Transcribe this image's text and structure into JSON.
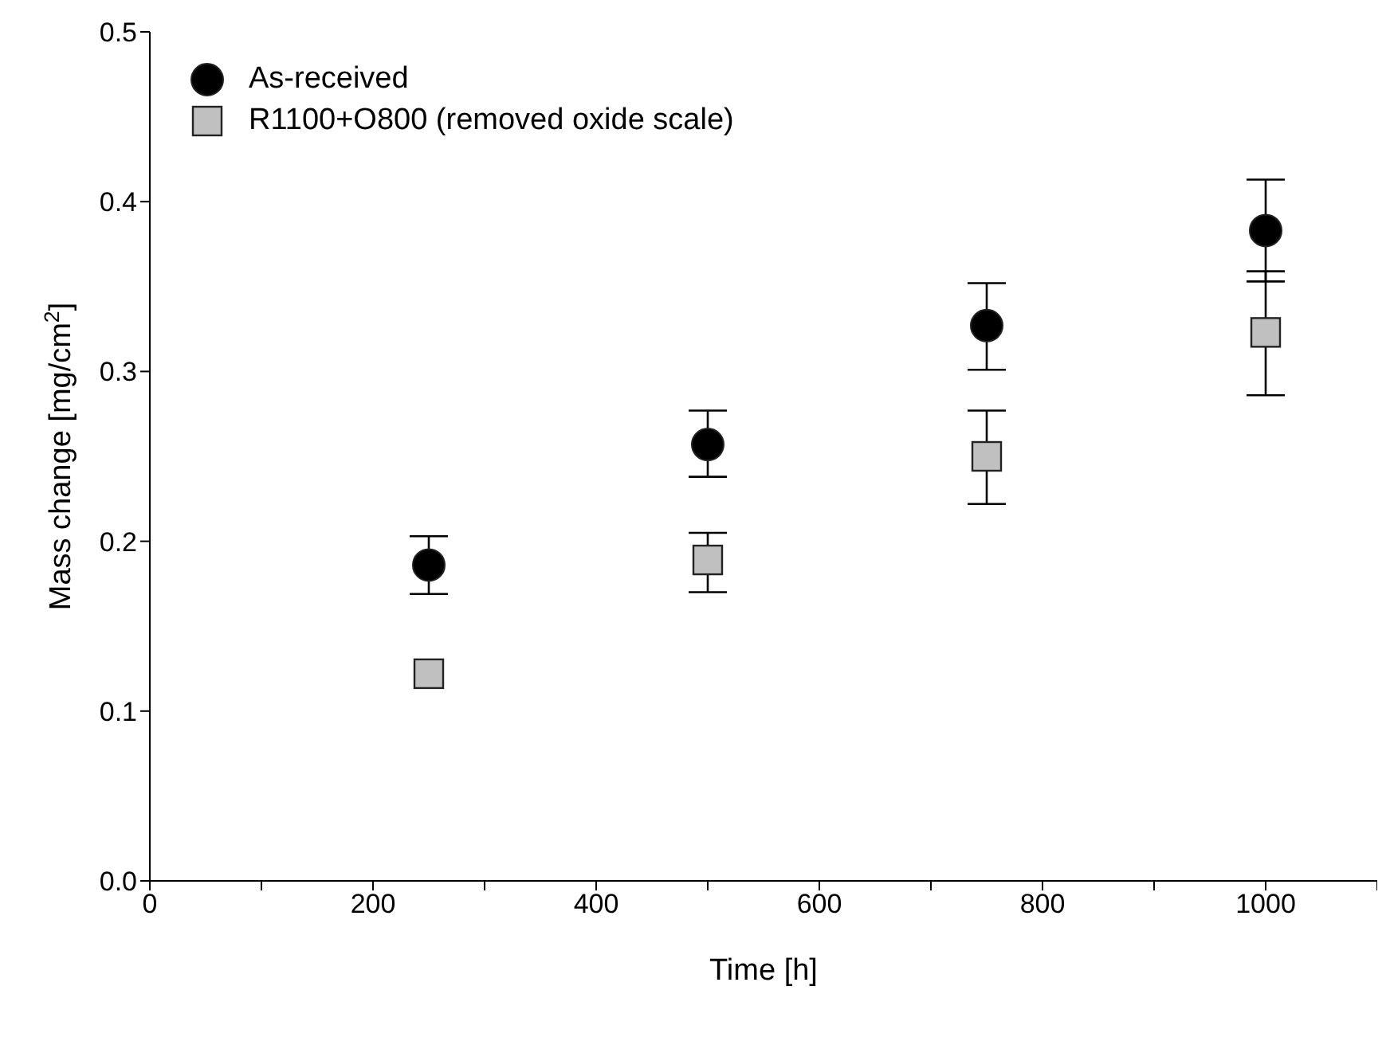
{
  "chart_data": {
    "type": "scatter",
    "xlabel": "Time [h]",
    "ylabel": "Mass change [mg/cm$^{2}$]",
    "xlim": [
      0,
      1100
    ],
    "xticks": [
      0,
      {
        "value": 100,
        "label": null
      },
      200,
      {
        "value": 300,
        "label": null
      },
      400,
      {
        "value": 500,
        "label": null
      },
      600,
      {
        "value": 700,
        "label": null
      },
      800,
      {
        "value": 900,
        "label": null
      },
      1000,
      {
        "value": 1100,
        "label": null
      }
    ],
    "ylim": [
      0,
      0.5
    ],
    "yticks": [
      {
        "value": 0,
        "label": "0.0"
      },
      0.1,
      0.2,
      0.3,
      0.4,
      0.5
    ],
    "grid": false,
    "legend": "top left",
    "series": [
      {
        "name": "As-received",
        "color": "#000000",
        "marker": "circle",
        "x": [
          250,
          500,
          750,
          1000
        ],
        "values": [
          0.186,
          0.257,
          0.327,
          0.383
        ],
        "errors": [
          [
            0.169,
            0.203
          ],
          [
            0.238,
            0.277
          ],
          [
            0.301,
            0.352
          ],
          [
            0.353,
            0.413
          ]
        ]
      },
      {
        "name": "R1100+O800 (removed oxide scale)",
        "color": "#c0c0c0",
        "marker": "square",
        "x": [
          250,
          500,
          750,
          1000
        ],
        "values": [
          0.122,
          0.189,
          0.25,
          0.323
        ],
        "errors": [
          null,
          [
            0.17,
            0.205
          ],
          [
            0.222,
            0.277
          ],
          [
            0.286,
            0.359
          ]
        ]
      }
    ]
  }
}
